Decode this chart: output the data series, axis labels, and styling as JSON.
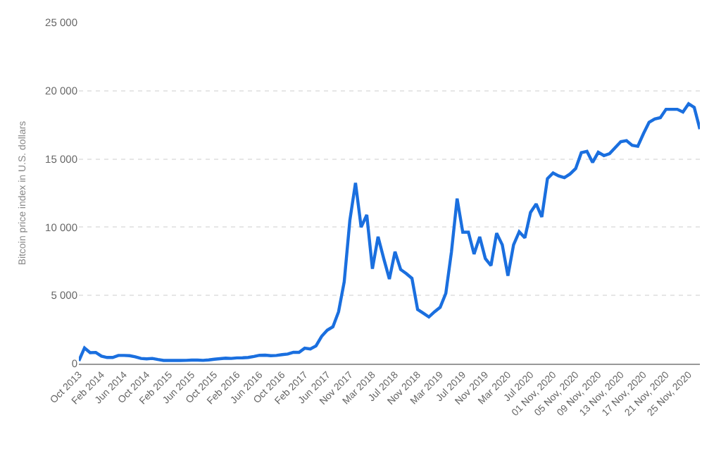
{
  "chart_data": {
    "type": "line",
    "ylabel": "Bitcoin price index in U.S. dollars",
    "categories": [
      "Oct 2013",
      null,
      null,
      null,
      "Feb 2014",
      null,
      null,
      null,
      "Jun 2014",
      null,
      null,
      null,
      "Oct 2014",
      null,
      null,
      null,
      "Feb 2015",
      null,
      null,
      null,
      "Jun 2015",
      null,
      null,
      null,
      "Oct 2015",
      null,
      null,
      null,
      "Feb 2016",
      null,
      null,
      null,
      "Jun 2016",
      null,
      null,
      null,
      "Oct 2016",
      null,
      null,
      null,
      "Feb 2017",
      null,
      null,
      null,
      "Jun 2017",
      null,
      null,
      null,
      "Nov 2017",
      null,
      null,
      null,
      "Mar 2018",
      null,
      null,
      null,
      "Jul 2018",
      null,
      null,
      null,
      "Nov 2018",
      null,
      null,
      null,
      "Mar 2019",
      null,
      null,
      null,
      "Jul 2019",
      null,
      null,
      null,
      "Nov 2019",
      null,
      null,
      null,
      "Mar 2020",
      null,
      null,
      null,
      "Jul 2020",
      null,
      null,
      null,
      "01 Nov, 2020",
      null,
      null,
      null,
      "05 Nov, 2020",
      null,
      null,
      null,
      "09 Nov, 2020",
      null,
      null,
      null,
      "13 Nov, 2020",
      null,
      null,
      null,
      "17 Nov, 2020",
      null,
      null,
      null,
      "21 Nov, 2020",
      null,
      null,
      null,
      "25 Nov, 2020",
      null,
      null
    ],
    "series": [
      {
        "color": "#1a6fdf",
        "values": [
          200,
          1150,
          800,
          820,
          550,
          450,
          450,
          600,
          600,
          580,
          500,
          380,
          350,
          380,
          300,
          230,
          230,
          240,
          230,
          240,
          260,
          260,
          240,
          270,
          320,
          360,
          400,
          380,
          420,
          430,
          450,
          520,
          610,
          620,
          580,
          600,
          660,
          700,
          830,
          830,
          1130,
          1070,
          1300,
          2000,
          2450,
          2700,
          3800,
          6000,
          10500,
          13250,
          10000,
          10900,
          6950,
          9300,
          7700,
          6200,
          8200,
          6900,
          6600,
          6250,
          3970,
          3700,
          3420,
          3800,
          4130,
          5150,
          8200,
          12100,
          9630,
          9630,
          8030,
          9290,
          7700,
          7190,
          9560,
          8710,
          6440,
          8710,
          9660,
          9220,
          11080,
          11700,
          10750,
          13560,
          13970,
          13760,
          13630,
          13900,
          14300,
          15460,
          15560,
          14750,
          15490,
          15250,
          15390,
          15830,
          16270,
          16340,
          16000,
          15930,
          16850,
          17690,
          17930,
          18030,
          18640,
          18640,
          18640,
          18440,
          19050,
          18780,
          17190
        ]
      }
    ],
    "ylim": [
      0,
      25000
    ],
    "yticks": [
      0,
      {
        "value": 5000,
        "label": "5 000"
      },
      {
        "value": 10000,
        "label": "10 000"
      },
      {
        "value": 15000,
        "label": "15 000"
      },
      {
        "value": 20000,
        "label": "20 000"
      },
      {
        "value": 25000,
        "label": "25 000"
      }
    ],
    "grid": "y",
    "legend": false,
    "marker": "none",
    "line_style": "solid"
  }
}
